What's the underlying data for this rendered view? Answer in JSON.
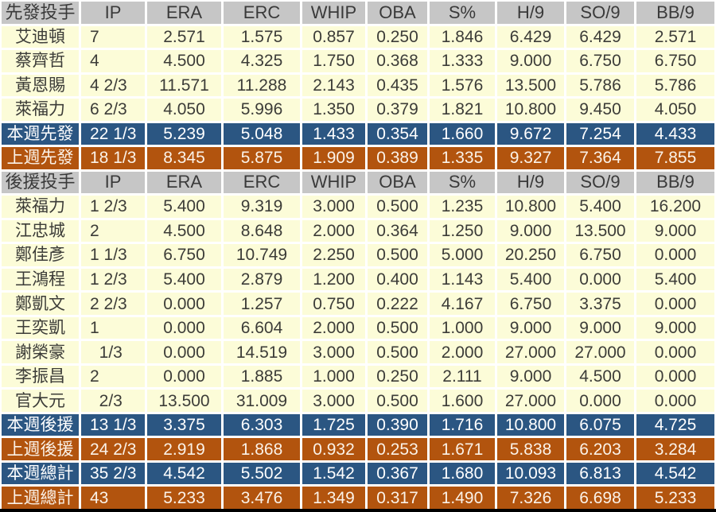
{
  "colors": {
    "summary_current_week_blue": "#2B5682",
    "summary_previous_week_orange": "#B2540E",
    "header_gray": "#C6C6C6",
    "row_yellow": "#FCFCD8",
    "gridline_white": "#FFFFFF",
    "text_dark": "#3C3C38",
    "text_light": "#FFFFFF"
  },
  "chart_data": {
    "type": "table",
    "stat_columns": [
      "IP",
      "ERA",
      "ERC",
      "WHIP",
      "OBA",
      "S%",
      "H/9",
      "SO/9",
      "BB/9"
    ],
    "sections": [
      {
        "header": "先發投手",
        "rows": [
          {
            "style": "player",
            "label": "艾迪頓",
            "values": [
              "7",
              "2.571",
              "1.575",
              "0.857",
              "0.250",
              "1.846",
              "6.429",
              "6.429",
              "2.571"
            ]
          },
          {
            "style": "player",
            "label": "蔡齊哲",
            "values": [
              "4",
              "4.500",
              "4.325",
              "1.750",
              "0.368",
              "1.333",
              "9.000",
              "6.750",
              "6.750"
            ]
          },
          {
            "style": "player",
            "label": "黃恩賜",
            "values": [
              "4 2/3",
              "11.571",
              "11.288",
              "2.143",
              "0.435",
              "1.576",
              "13.500",
              "5.786",
              "5.786"
            ]
          },
          {
            "style": "player",
            "label": "萊福力",
            "values": [
              "6 2/3",
              "4.050",
              "5.996",
              "1.350",
              "0.379",
              "1.821",
              "10.800",
              "9.450",
              "4.050"
            ]
          },
          {
            "style": "blue",
            "label": "本週先發",
            "values": [
              "22 1/3",
              "5.239",
              "5.048",
              "1.433",
              "0.354",
              "1.660",
              "9.672",
              "7.254",
              "4.433"
            ]
          },
          {
            "style": "orange",
            "label": "上週先發",
            "values": [
              "18 1/3",
              "8.345",
              "5.875",
              "1.909",
              "0.389",
              "1.335",
              "9.327",
              "7.364",
              "7.855"
            ]
          }
        ]
      },
      {
        "header": "後援投手",
        "rows": [
          {
            "style": "player",
            "label": "萊福力",
            "values": [
              "1 2/3",
              "5.400",
              "9.319",
              "3.000",
              "0.500",
              "1.235",
              "10.800",
              "5.400",
              "16.200"
            ]
          },
          {
            "style": "player",
            "label": "江忠城",
            "values": [
              "2",
              "4.500",
              "8.648",
              "2.000",
              "0.364",
              "1.250",
              "9.000",
              "13.500",
              "9.000"
            ]
          },
          {
            "style": "player",
            "label": "鄭佳彥",
            "values": [
              "1 1/3",
              "6.750",
              "10.749",
              "2.250",
              "0.500",
              "5.000",
              "20.250",
              "6.750",
              "0.000"
            ]
          },
          {
            "style": "player",
            "label": "王鴻程",
            "values": [
              "1 2/3",
              "5.400",
              "2.879",
              "1.200",
              "0.400",
              "1.143",
              "5.400",
              "0.000",
              "5.400"
            ]
          },
          {
            "style": "player",
            "label": "鄭凱文",
            "values": [
              "2 2/3",
              "0.000",
              "1.257",
              "0.750",
              "0.222",
              "4.167",
              "6.750",
              "3.375",
              "0.000"
            ]
          },
          {
            "style": "player",
            "label": "王奕凱",
            "values": [
              "1",
              "0.000",
              "6.604",
              "2.000",
              "0.500",
              "1.000",
              "9.000",
              "9.000",
              "9.000"
            ]
          },
          {
            "style": "player",
            "label": "謝榮豪",
            "values": [
              "  1/3",
              "0.000",
              "14.519",
              "3.000",
              "0.500",
              "2.000",
              "27.000",
              "27.000",
              "0.000"
            ]
          },
          {
            "style": "player",
            "label": "李振昌",
            "values": [
              "2",
              "0.000",
              "1.885",
              "1.000",
              "0.250",
              "2.111",
              "9.000",
              "4.500",
              "0.000"
            ]
          },
          {
            "style": "player",
            "label": "官大元",
            "values": [
              "  2/3",
              "13.500",
              "31.009",
              "3.000",
              "0.500",
              "1.600",
              "27.000",
              "0.000",
              "0.000"
            ]
          },
          {
            "style": "blue",
            "label": "本週後援",
            "values": [
              "13 1/3",
              "3.375",
              "6.303",
              "1.725",
              "0.390",
              "1.716",
              "10.800",
              "6.075",
              "4.725"
            ]
          },
          {
            "style": "orange",
            "label": "上週後援",
            "values": [
              "24 2/3",
              "2.919",
              "1.868",
              "0.932",
              "0.253",
              "1.671",
              "5.838",
              "6.203",
              "3.284"
            ]
          },
          {
            "style": "blue",
            "label": "本週總計",
            "values": [
              "35 2/3",
              "4.542",
              "5.502",
              "1.542",
              "0.367",
              "1.680",
              "10.093",
              "6.813",
              "4.542"
            ]
          },
          {
            "style": "orange",
            "label": "上週總計",
            "values": [
              "43",
              "5.233",
              "3.476",
              "1.349",
              "0.317",
              "1.490",
              "7.326",
              "6.698",
              "5.233"
            ]
          }
        ]
      }
    ]
  }
}
